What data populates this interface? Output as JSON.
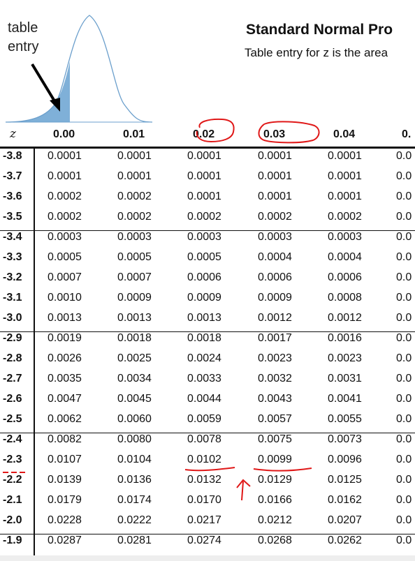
{
  "figure": {
    "label": "table\nentry"
  },
  "header": {
    "title": "Standard Normal Pro",
    "subtitle": "Table entry for z is the area"
  },
  "table": {
    "z_header": "z",
    "columns": [
      "0.00",
      "0.01",
      "0.02",
      "0.03",
      "0.04",
      "0."
    ],
    "rows": [
      {
        "z": "-3.8",
        "values": [
          "0.0001",
          "0.0001",
          "0.0001",
          "0.0001",
          "0.0001",
          "0.0"
        ]
      },
      {
        "z": "-3.7",
        "values": [
          "0.0001",
          "0.0001",
          "0.0001",
          "0.0001",
          "0.0001",
          "0.0"
        ]
      },
      {
        "z": "-3.6",
        "values": [
          "0.0002",
          "0.0002",
          "0.0001",
          "0.0001",
          "0.0001",
          "0.0"
        ]
      },
      {
        "z": "-3.5",
        "values": [
          "0.0002",
          "0.0002",
          "0.0002",
          "0.0002",
          "0.0002",
          "0.0"
        ]
      },
      {
        "z": "-3.4",
        "values": [
          "0.0003",
          "0.0003",
          "0.0003",
          "0.0003",
          "0.0003",
          "0.0"
        ]
      },
      {
        "z": "-3.3",
        "values": [
          "0.0005",
          "0.0005",
          "0.0005",
          "0.0004",
          "0.0004",
          "0.0"
        ]
      },
      {
        "z": "-3.2",
        "values": [
          "0.0007",
          "0.0007",
          "0.0006",
          "0.0006",
          "0.0006",
          "0.0"
        ]
      },
      {
        "z": "-3.1",
        "values": [
          "0.0010",
          "0.0009",
          "0.0009",
          "0.0009",
          "0.0008",
          "0.0"
        ]
      },
      {
        "z": "-3.0",
        "values": [
          "0.0013",
          "0.0013",
          "0.0013",
          "0.0012",
          "0.0012",
          "0.0"
        ]
      },
      {
        "z": "-2.9",
        "values": [
          "0.0019",
          "0.0018",
          "0.0018",
          "0.0017",
          "0.0016",
          "0.0"
        ]
      },
      {
        "z": "-2.8",
        "values": [
          "0.0026",
          "0.0025",
          "0.0024",
          "0.0023",
          "0.0023",
          "0.0"
        ]
      },
      {
        "z": "-2.7",
        "values": [
          "0.0035",
          "0.0034",
          "0.0033",
          "0.0032",
          "0.0031",
          "0.0"
        ]
      },
      {
        "z": "-2.6",
        "values": [
          "0.0047",
          "0.0045",
          "0.0044",
          "0.0043",
          "0.0041",
          "0.0"
        ]
      },
      {
        "z": "-2.5",
        "values": [
          "0.0062",
          "0.0060",
          "0.0059",
          "0.0057",
          "0.0055",
          "0.0"
        ]
      },
      {
        "z": "-2.4",
        "values": [
          "0.0082",
          "0.0080",
          "0.0078",
          "0.0075",
          "0.0073",
          "0.0"
        ]
      },
      {
        "z": "-2.3",
        "values": [
          "0.0107",
          "0.0104",
          "0.0102",
          "0.0099",
          "0.0096",
          "0.0"
        ]
      },
      {
        "z": "-2.2",
        "values": [
          "0.0139",
          "0.0136",
          "0.0132",
          "0.0129",
          "0.0125",
          "0.0"
        ]
      },
      {
        "z": "-2.1",
        "values": [
          "0.0179",
          "0.0174",
          "0.0170",
          "0.0166",
          "0.0162",
          "0.0"
        ]
      },
      {
        "z": "-2.0",
        "values": [
          "0.0228",
          "0.0222",
          "0.0217",
          "0.0212",
          "0.0207",
          "0.0"
        ]
      },
      {
        "z": "-1.9",
        "values": [
          "0.0287",
          "0.0281",
          "0.0274",
          "0.0268",
          "0.0262",
          "0.0"
        ]
      }
    ]
  },
  "colors": {
    "curve": "#6b9fcc",
    "shade": "#7fb0d8",
    "ink": "#111111",
    "annotation": "#e01818"
  }
}
